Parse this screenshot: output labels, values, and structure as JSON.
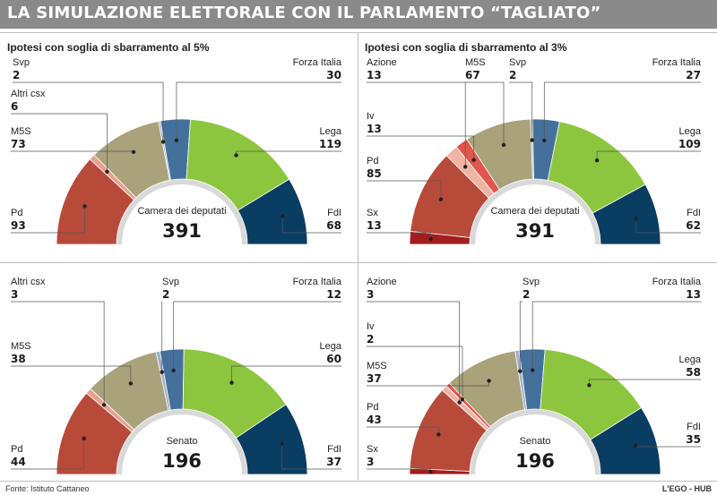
{
  "title": "LA SIMULAZIONE ELETTORALE CON IL PARLAMENTO “TAGLIATO”",
  "subtitles": {
    "left": "Ipotesi con soglia di sbarramento al 5%",
    "right": "Ipotesi con soglia di sbarramento al 3%"
  },
  "footer": {
    "source": "Fonte: Istituto Cattaneo",
    "credit": "L'EGO - HUB"
  },
  "colors": {
    "Sx": "#a31d1d",
    "Pd": "#b84a3a",
    "Iv": "#e0564c",
    "Azione": "#f0b4a4",
    "Altri csx": "#e8a090",
    "M5S": "#a9a27a",
    "Svp": "#9fb0c8",
    "Forza Italia": "#44719c",
    "Lega": "#8cc63e",
    "FdI": "#0a3d62"
  },
  "chart_data": [
    {
      "type": "pie",
      "variant": "hemicycle",
      "title": "Camera dei deputati",
      "total": "391",
      "series": [
        {
          "name": "Pd",
          "value": 93
        },
        {
          "name": "Altri csx",
          "value": 6
        },
        {
          "name": "M5S",
          "value": 73
        },
        {
          "name": "Svp",
          "value": 2
        },
        {
          "name": "Forza Italia",
          "value": 30
        },
        {
          "name": "Lega",
          "value": 119
        },
        {
          "name": "FdI",
          "value": 68
        }
      ],
      "labels": [
        {
          "party": "Pd",
          "text": "Pd",
          "value": "93"
        },
        {
          "party": "Altri csx",
          "text": "Altri csx",
          "value": "6"
        },
        {
          "party": "M5S",
          "text": "M5S",
          "value": "73"
        },
        {
          "party": "Svp",
          "text": "Svp",
          "value": "2"
        },
        {
          "party": "Forza Italia",
          "text": "Forza Italia",
          "value": "30"
        },
        {
          "party": "Lega",
          "text": "Lega",
          "value": "119"
        },
        {
          "party": "FdI",
          "text": "FdI",
          "value": "68"
        }
      ]
    },
    {
      "type": "pie",
      "variant": "hemicycle",
      "title": "Camera dei deputati",
      "total": "391",
      "series": [
        {
          "name": "Sx",
          "value": 13
        },
        {
          "name": "Pd",
          "value": 85
        },
        {
          "name": "Azione",
          "value": 13
        },
        {
          "name": "Iv",
          "value": 13
        },
        {
          "name": "M5S",
          "value": 67
        },
        {
          "name": "Svp",
          "value": 2
        },
        {
          "name": "Forza Italia",
          "value": 27
        },
        {
          "name": "Lega",
          "value": 109
        },
        {
          "name": "FdI",
          "value": 62
        }
      ],
      "labels": [
        {
          "party": "Sx",
          "text": "Sx",
          "value": "13"
        },
        {
          "party": "Pd",
          "text": "Pd",
          "value": "85"
        },
        {
          "party": "Azione",
          "text": "Azione",
          "value": "13"
        },
        {
          "party": "Iv",
          "text": "Iv",
          "value": "13"
        },
        {
          "party": "M5S",
          "text": "M5S",
          "value": "67"
        },
        {
          "party": "Svp",
          "text": "Svp",
          "value": "2"
        },
        {
          "party": "Forza Italia",
          "text": "Forza Italia",
          "value": "27"
        },
        {
          "party": "Lega",
          "text": "Lega",
          "value": "109"
        },
        {
          "party": "FdI",
          "text": "FdI",
          "value": "62"
        }
      ]
    },
    {
      "type": "pie",
      "variant": "hemicycle",
      "title": "Senato",
      "total": "196",
      "series": [
        {
          "name": "Pd",
          "value": 44
        },
        {
          "name": "Altri csx",
          "value": 3
        },
        {
          "name": "M5S",
          "value": 38
        },
        {
          "name": "Svp",
          "value": 2
        },
        {
          "name": "Forza Italia",
          "value": 12
        },
        {
          "name": "Lega",
          "value": 60
        },
        {
          "name": "FdI",
          "value": 37
        }
      ],
      "labels": [
        {
          "party": "Pd",
          "text": "Pd",
          "value": "44"
        },
        {
          "party": "Altri csx",
          "text": "Altri csx",
          "value": "3"
        },
        {
          "party": "M5S",
          "text": "M5S",
          "value": "38"
        },
        {
          "party": "Svp",
          "text": "Svp",
          "value": "2"
        },
        {
          "party": "Forza Italia",
          "text": "Forza Italia",
          "value": "12"
        },
        {
          "party": "Lega",
          "text": "Lega",
          "value": "60"
        },
        {
          "party": "FdI",
          "text": "FdI",
          "value": "37"
        }
      ]
    },
    {
      "type": "pie",
      "variant": "hemicycle",
      "title": "Senato",
      "total": "196",
      "series": [
        {
          "name": "Sx",
          "value": 3
        },
        {
          "name": "Pd",
          "value": 43
        },
        {
          "name": "Azione",
          "value": 3
        },
        {
          "name": "Iv",
          "value": 2
        },
        {
          "name": "M5S",
          "value": 37
        },
        {
          "name": "Svp",
          "value": 2
        },
        {
          "name": "Forza Italia",
          "value": 13
        },
        {
          "name": "Lega",
          "value": 58
        },
        {
          "name": "FdI",
          "value": 35
        }
      ],
      "labels": [
        {
          "party": "Sx",
          "text": "Sx",
          "value": "3"
        },
        {
          "party": "Pd",
          "text": "Pd",
          "value": "43"
        },
        {
          "party": "Azione",
          "text": "Azione",
          "value": "3"
        },
        {
          "party": "Iv",
          "text": "Iv",
          "value": "2"
        },
        {
          "party": "M5S",
          "text": "M5S",
          "value": "37"
        },
        {
          "party": "Svp",
          "text": "Svp",
          "value": "2"
        },
        {
          "party": "Forza Italia",
          "text": "Forza Italia",
          "value": "13"
        },
        {
          "party": "Lega",
          "text": "Lega",
          "value": "58"
        },
        {
          "party": "FdI",
          "text": "FdI",
          "value": "35"
        }
      ]
    }
  ]
}
